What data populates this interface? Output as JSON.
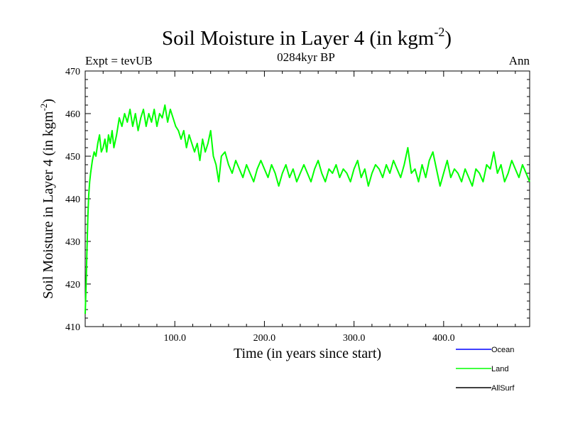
{
  "header": {
    "title_main": "Soil Moisture in Layer 4 (in kgm",
    "title_sup": "-2",
    "title_close": ")",
    "left_label": "Expt = tevUB",
    "center_label": "0284kyr BP",
    "right_label": "Ann"
  },
  "chart_data": {
    "type": "line",
    "xlabel": "Time (in years since start)",
    "ylabel_main": "Soil Moisture in Layer 4 (in kgm",
    "ylabel_sup": "-2",
    "ylabel_close": ")",
    "xlim": [
      0,
      496
    ],
    "ylim": [
      410,
      470
    ],
    "x_ticks": [
      {
        "value": 100,
        "label": "100.0"
      },
      {
        "value": 200,
        "label": "200.0"
      },
      {
        "value": 300,
        "label": "300.0"
      },
      {
        "value": 400,
        "label": "400.0"
      }
    ],
    "y_ticks": [
      {
        "value": 410,
        "label": "410"
      },
      {
        "value": 420,
        "label": "420"
      },
      {
        "value": 430,
        "label": "430"
      },
      {
        "value": 440,
        "label": "440"
      },
      {
        "value": 450,
        "label": "450"
      },
      {
        "value": 460,
        "label": "460"
      },
      {
        "value": 470,
        "label": "470"
      }
    ],
    "legend_position": "bottom-right",
    "series": [
      {
        "name": "Ocean",
        "color": "#0000ff",
        "x": [],
        "y": []
      },
      {
        "name": "Land",
        "color": "#00ff00",
        "x": [
          0,
          1,
          2,
          3,
          4,
          5,
          6,
          8,
          10,
          12,
          14,
          16,
          18,
          20,
          22,
          24,
          26,
          28,
          30,
          32,
          35,
          38,
          41,
          44,
          47,
          50,
          53,
          56,
          59,
          62,
          65,
          68,
          71,
          74,
          77,
          80,
          83,
          86,
          89,
          92,
          95,
          98,
          101,
          104,
          107,
          110,
          113,
          116,
          119,
          122,
          125,
          128,
          131,
          134,
          137,
          140,
          143,
          146,
          149,
          152,
          156,
          160,
          164,
          168,
          172,
          176,
          180,
          184,
          188,
          192,
          196,
          200,
          204,
          208,
          212,
          216,
          220,
          224,
          228,
          232,
          236,
          240,
          244,
          248,
          252,
          256,
          260,
          264,
          268,
          272,
          276,
          280,
          284,
          288,
          292,
          296,
          300,
          304,
          308,
          312,
          316,
          320,
          324,
          328,
          332,
          336,
          340,
          344,
          348,
          352,
          356,
          360,
          364,
          368,
          372,
          376,
          380,
          384,
          388,
          392,
          396,
          400,
          404,
          408,
          412,
          416,
          420,
          424,
          428,
          432,
          436,
          440,
          444,
          448,
          452,
          456,
          460,
          464,
          468,
          472,
          476,
          480,
          484,
          488,
          492,
          496
        ],
        "y": [
          413,
          420,
          428,
          436,
          441,
          444,
          446,
          449,
          451,
          450,
          453,
          455,
          451,
          452,
          454,
          451,
          455,
          453,
          456,
          452,
          455,
          459,
          457,
          460,
          458,
          461,
          457,
          460,
          456,
          459,
          461,
          457,
          460,
          458,
          461,
          457,
          460,
          459,
          462,
          458,
          461,
          459,
          457,
          456,
          454,
          456,
          452,
          455,
          453,
          451,
          453,
          449,
          454,
          451,
          453,
          456,
          450,
          448,
          444,
          450,
          451,
          448,
          446,
          449,
          447,
          445,
          448,
          446,
          444,
          447,
          449,
          447,
          445,
          448,
          446,
          443,
          446,
          448,
          445,
          447,
          444,
          446,
          448,
          446,
          444,
          447,
          449,
          446,
          444,
          447,
          446,
          448,
          445,
          447,
          446,
          444,
          447,
          449,
          445,
          447,
          443,
          446,
          448,
          447,
          445,
          448,
          446,
          449,
          447,
          445,
          448,
          452,
          446,
          447,
          444,
          448,
          445,
          449,
          451,
          447,
          443,
          446,
          449,
          445,
          447,
          446,
          444,
          447,
          445,
          443,
          447,
          446,
          444,
          448,
          447,
          451,
          446,
          448,
          444,
          446,
          449,
          447,
          445,
          448,
          446,
          444
        ]
      },
      {
        "name": "AllSurf",
        "color": "#000000",
        "x": [],
        "y": []
      }
    ]
  }
}
